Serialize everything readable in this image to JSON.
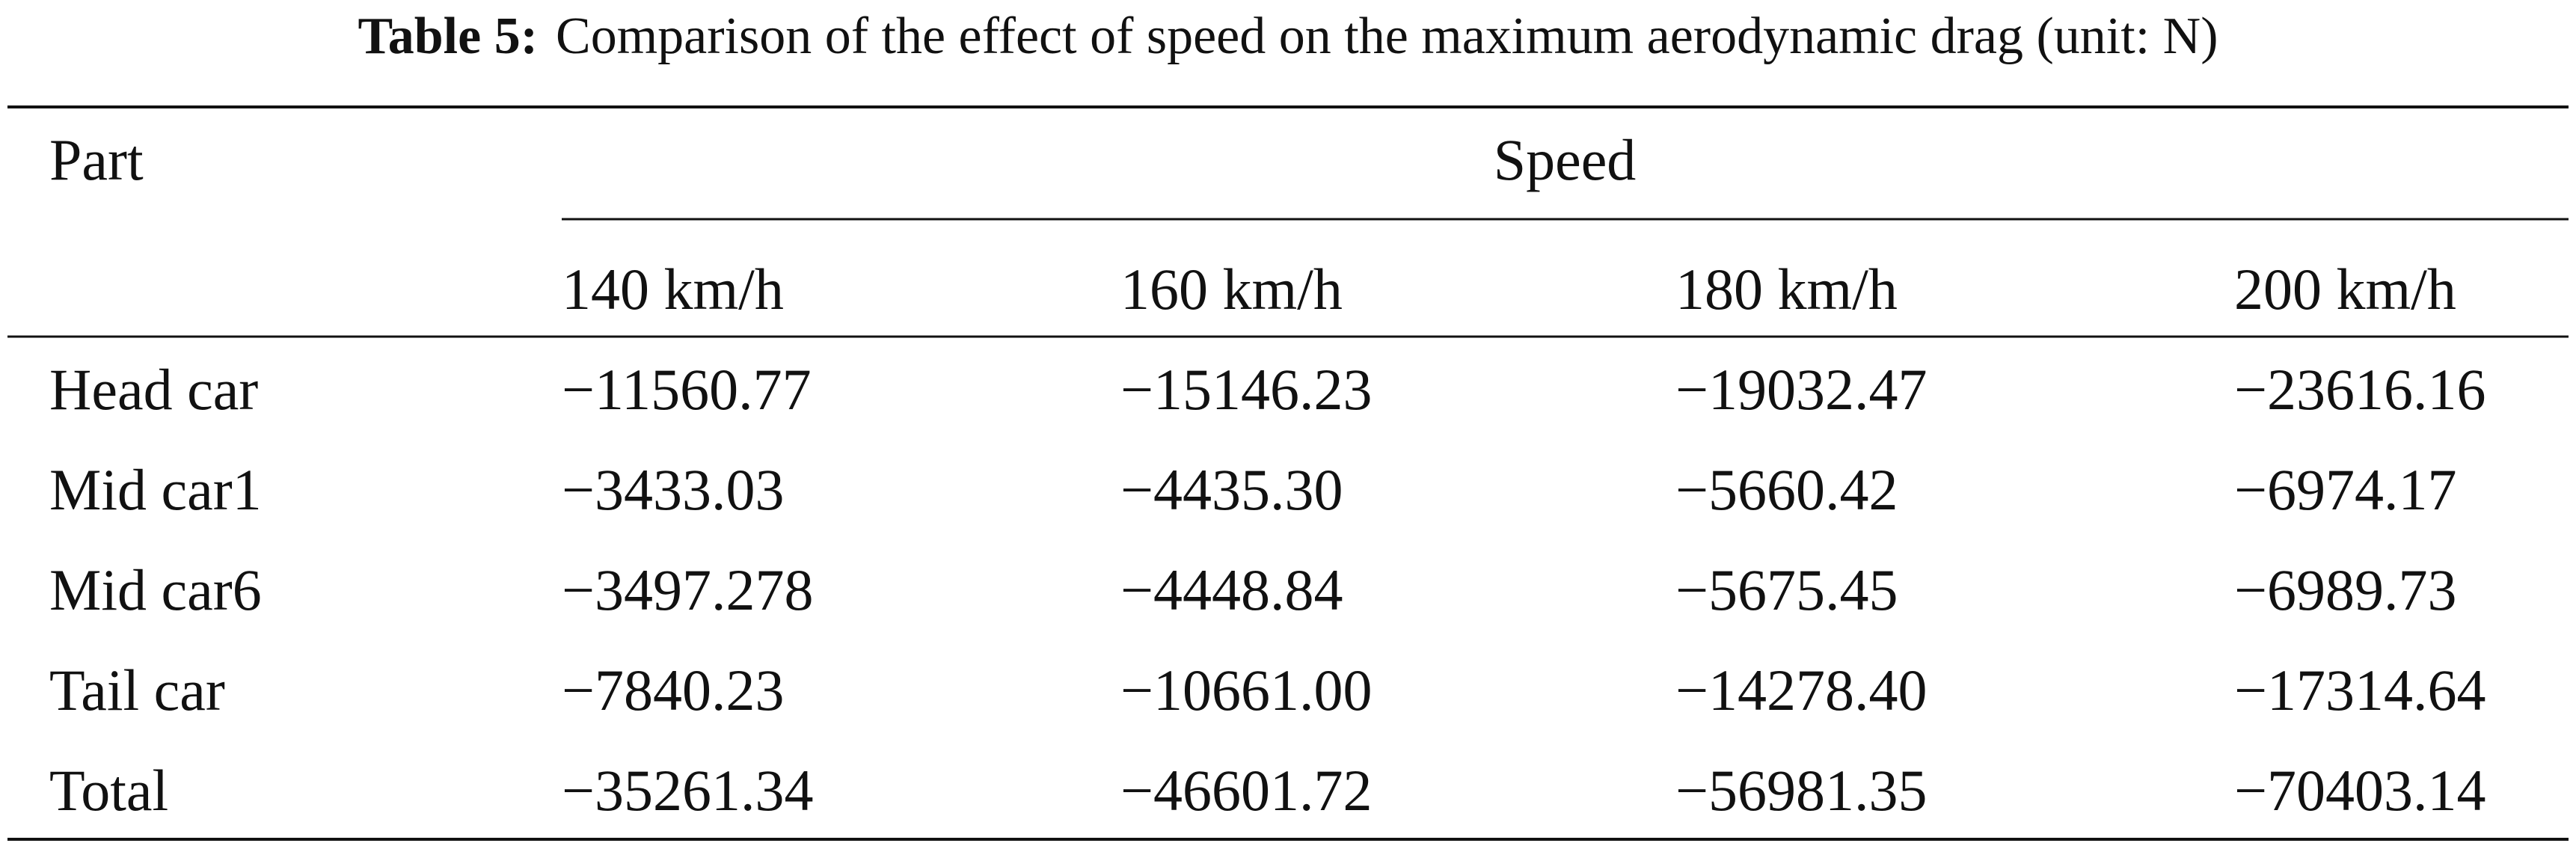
{
  "title": {
    "label": "Table 5:",
    "text": "Comparison of the effect of speed on the maximum aerodynamic drag (unit: N)"
  },
  "table": {
    "header": {
      "part": "Part",
      "group": "Speed",
      "columns": [
        "140 km/h",
        "160 km/h",
        "180 km/h",
        "200 km/h"
      ]
    },
    "rows": [
      [
        "Head car",
        "−11560.77",
        "−15146.23",
        "−19032.47",
        "−23616.16"
      ],
      [
        "Mid car1",
        "−3433.03",
        "−4435.30",
        "−5660.42",
        "−6974.17"
      ],
      [
        "Mid car6",
        "−3497.278",
        "−4448.84",
        "−5675.45",
        "−6989.73"
      ],
      [
        "Tail car",
        "−7840.23",
        "−10661.00",
        "−14278.40",
        "−17314.64"
      ],
      [
        "Total",
        "−35261.34",
        "−46601.72",
        "−56981.35",
        "−70403.14"
      ]
    ]
  }
}
